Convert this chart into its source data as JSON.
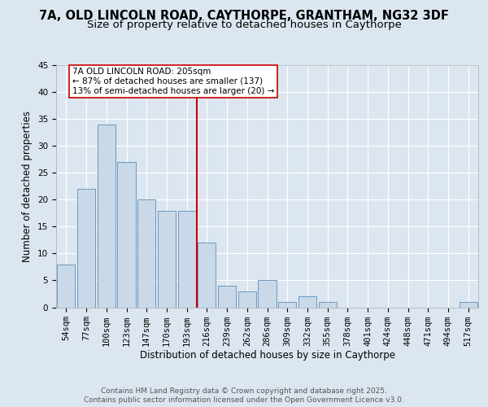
{
  "title_line1": "7A, OLD LINCOLN ROAD, CAYTHORPE, GRANTHAM, NG32 3DF",
  "title_line2": "Size of property relative to detached houses in Caythorpe",
  "xlabel": "Distribution of detached houses by size in Caythorpe",
  "ylabel": "Number of detached properties",
  "categories": [
    "54sqm",
    "77sqm",
    "100sqm",
    "123sqm",
    "147sqm",
    "170sqm",
    "193sqm",
    "216sqm",
    "239sqm",
    "262sqm",
    "286sqm",
    "309sqm",
    "332sqm",
    "355sqm",
    "378sqm",
    "401sqm",
    "424sqm",
    "448sqm",
    "471sqm",
    "494sqm",
    "517sqm"
  ],
  "values": [
    8,
    22,
    34,
    27,
    20,
    18,
    18,
    12,
    4,
    3,
    5,
    1,
    2,
    1,
    0,
    0,
    0,
    0,
    0,
    0,
    1
  ],
  "bar_color": "#c9d9e8",
  "bar_edge_color": "#5b8db8",
  "vline_color": "#cc0000",
  "vline_x_index": 7,
  "annotation_text": "7A OLD LINCOLN ROAD: 205sqm\n← 87% of detached houses are smaller (137)\n13% of semi-detached houses are larger (20) →",
  "annotation_box_color": "#ffffff",
  "annotation_box_edge": "#cc0000",
  "ylim": [
    0,
    45
  ],
  "yticks": [
    0,
    5,
    10,
    15,
    20,
    25,
    30,
    35,
    40,
    45
  ],
  "background_color": "#dce6f0",
  "plot_bg_color": "#dce6f0",
  "grid_color": "#ffffff",
  "footer_line1": "Contains HM Land Registry data © Crown copyright and database right 2025.",
  "footer_line2": "Contains public sector information licensed under the Open Government Licence v3.0.",
  "title_fontsize": 10.5,
  "subtitle_fontsize": 9.5,
  "axis_label_fontsize": 8.5,
  "tick_fontsize": 7.5,
  "footer_fontsize": 6.5,
  "annotation_fontsize": 7.5
}
